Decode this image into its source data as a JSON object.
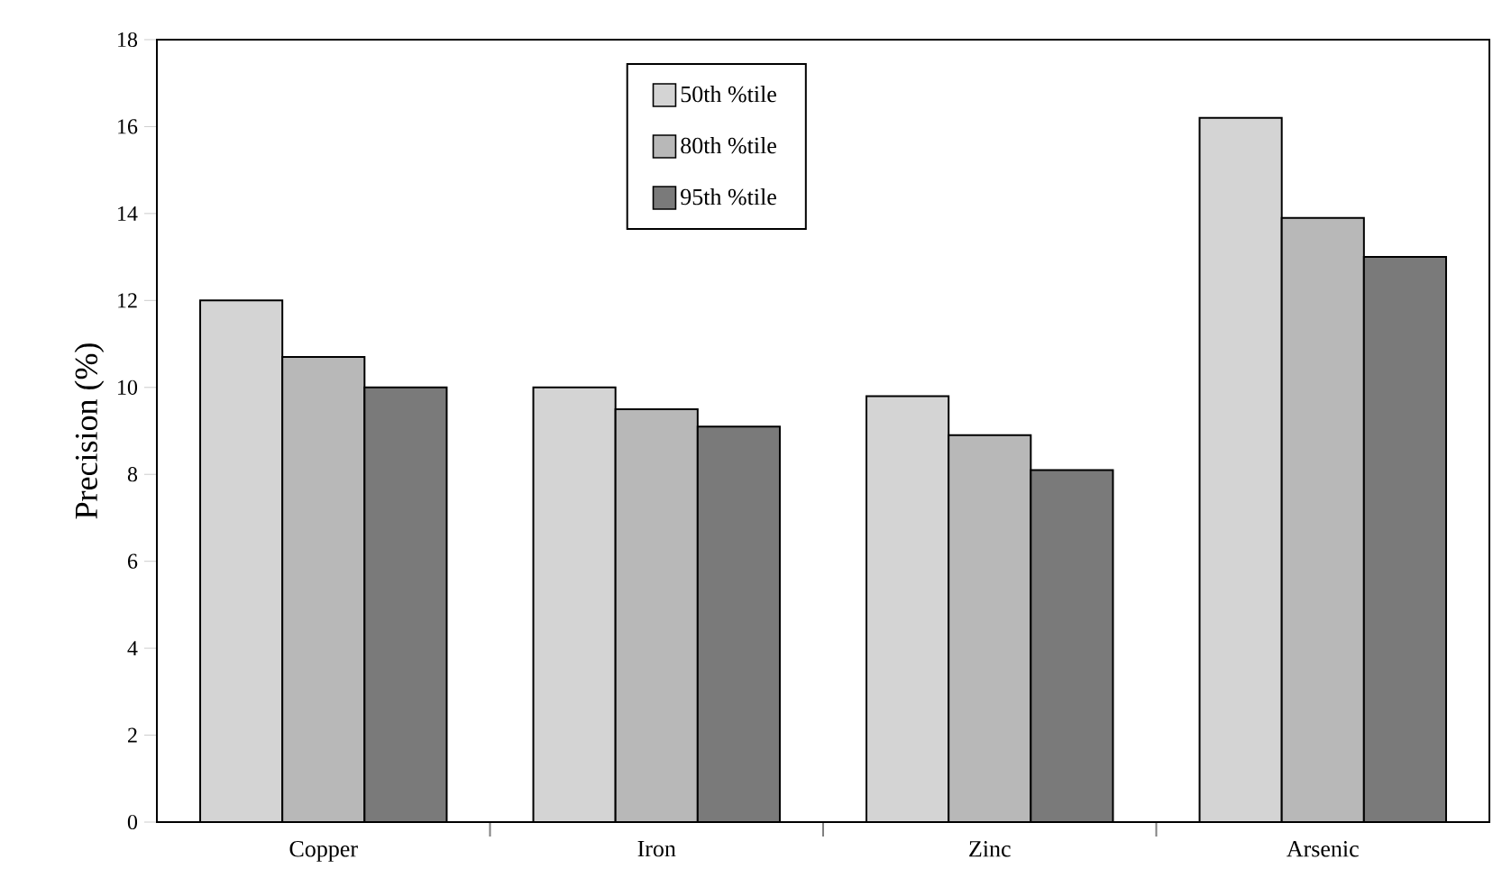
{
  "chart_data": {
    "type": "bar",
    "ylabel": "Precision (%)",
    "categories": [
      "Copper",
      "Iron",
      "Zinc",
      "Arsenic"
    ],
    "series": [
      {
        "name": "50th %tile",
        "color": "#d4d4d4",
        "values": [
          12.0,
          10.0,
          9.8,
          16.2
        ]
      },
      {
        "name": "80th %tile",
        "color": "#b8b8b8",
        "values": [
          10.7,
          9.5,
          8.9,
          13.9
        ]
      },
      {
        "name": "95th %tile",
        "color": "#7a7a7a",
        "values": [
          10.0,
          9.1,
          8.1,
          13.0
        ]
      }
    ],
    "ylim": [
      0,
      18
    ],
    "yticks": [
      0,
      2,
      4,
      6,
      8,
      10,
      12,
      14,
      16,
      18
    ],
    "legend": "top",
    "grid": false
  }
}
